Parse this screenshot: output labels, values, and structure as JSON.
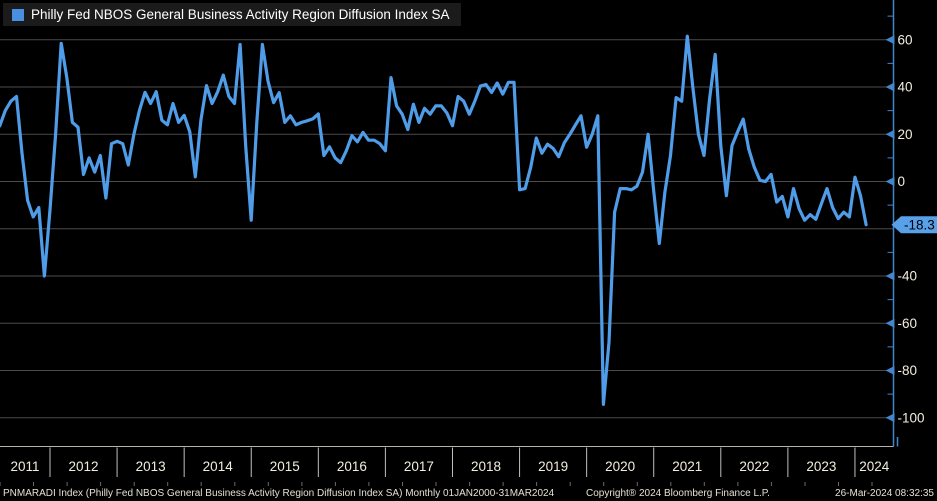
{
  "legend": {
    "label": "Philly Fed NBOS General Business Activity Region Diffusion Index SA"
  },
  "statusbar": {
    "left": "PNMARADI Index (Philly Fed NBOS General Business Activity Region Diffusion Index SA)  Monthly 01JAN2000-31MAR2024",
    "copyright": "Copyright® 2024 Bloomberg Finance L.P.",
    "timestamp": "26-Mar-2024 08:32:35"
  },
  "chart_data": {
    "type": "line",
    "title": "Philly Fed NBOS General Business Activity Region Diffusion Index SA",
    "frequency": "monthly",
    "period_shown": "2011-04 to 2024-03",
    "last_value": -18.3,
    "last_value_label": "-18.3",
    "grid": "horizontal-only",
    "legend_position": "top-left",
    "y_axis": {
      "side": "right",
      "ylim": [
        -105,
        77
      ],
      "major_ticks": [
        60,
        40,
        20,
        0,
        -40,
        -60,
        -80,
        -100
      ],
      "minor_ticks": [
        70,
        50,
        30,
        10,
        -10,
        -30,
        -50,
        -70,
        -90
      ],
      "gridlines": [
        60,
        40,
        20,
        0,
        -20,
        -40,
        -60,
        -80,
        -100
      ]
    },
    "x_axis": {
      "years": [
        2011,
        2012,
        2013,
        2014,
        2015,
        2016,
        2017,
        2018,
        2019,
        2020,
        2021,
        2022,
        2023,
        2024
      ]
    },
    "series": [
      {
        "name": "PNMARADI Index",
        "start_year": 2011,
        "start_month": 4,
        "values": [
          23.5,
          30,
          34,
          36,
          12,
          -8,
          -15,
          -11,
          -40,
          -12,
          20,
          58.5,
          44,
          25,
          23,
          3,
          10,
          4,
          11,
          -7,
          16,
          17,
          16,
          7,
          20,
          30,
          37.7,
          33,
          38,
          26,
          24,
          33,
          25,
          28,
          21,
          2,
          26,
          40.6,
          33,
          38,
          45,
          36,
          33,
          58,
          15,
          -16.4,
          25,
          58,
          42.5,
          33.4,
          37.6,
          25,
          27.8,
          24,
          25,
          25.7,
          26.5,
          28.6,
          11,
          14.7,
          10,
          8,
          13,
          19.4,
          16.8,
          20.8,
          17.5,
          17.5,
          16,
          13,
          44,
          32,
          28.5,
          22,
          32.7,
          25,
          31,
          28.5,
          32,
          32,
          29,
          23.6,
          36,
          34,
          28.5,
          34,
          40.4,
          41,
          37.7,
          41.7,
          37,
          42,
          42,
          -3.5,
          -3,
          6,
          18.4,
          12,
          15.8,
          14,
          10.5,
          16.4,
          20,
          24,
          27.8,
          14.5,
          20,
          27.8,
          -94.3,
          -68,
          -13,
          -3,
          -3,
          -3.5,
          -2,
          4,
          20,
          -4,
          -26.2,
          -4.5,
          11,
          35.5,
          34,
          61.5,
          40,
          20,
          11,
          35,
          53.8,
          15,
          -6,
          15.2,
          21,
          26.4,
          13.8,
          6,
          0.5,
          0,
          3,
          -8.7,
          -6.3,
          -15,
          -3,
          -11.5,
          -16.4,
          -14,
          -16,
          -9.4,
          -3,
          -11,
          -15.7,
          -13,
          -15,
          1.8,
          -6,
          -18.3
        ]
      }
    ],
    "colors": {
      "background": "#000000",
      "line": "#4f9ce8",
      "legend_swatch": "#4a90e2",
      "axis": "#4486cc",
      "gridline": "#4b4b4b",
      "tick_label": "#f2eede",
      "year_label": "#f2eede",
      "year_band_line": "#b5b2a8",
      "badge_bg": "#58a0e8",
      "badge_text": "#000000",
      "statusbar_text": "#e4e0d2"
    }
  }
}
